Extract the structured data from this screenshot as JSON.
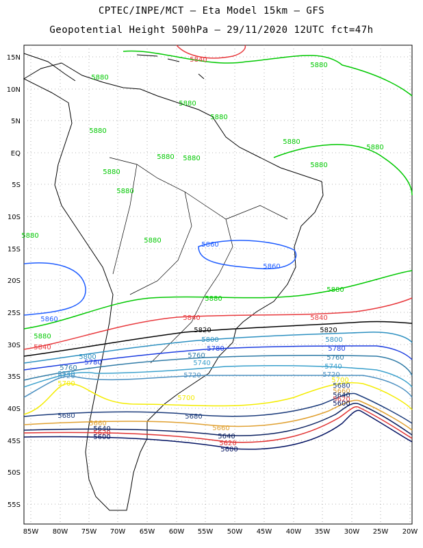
{
  "title_line1": "CPTEC/INPE/MCT –   Eta Model 15km – GFS",
  "title_line2": "Geopotential Height 500hPa – 29/11/2020 12UTC fct=47h",
  "lat_ticks": [
    "15N",
    "10N",
    "5N",
    "EQ",
    "5S",
    "10S",
    "15S",
    "20S",
    "25S",
    "30S",
    "35S",
    "40S",
    "45S",
    "50S",
    "55S"
  ],
  "lon_ticks": [
    "85W",
    "80W",
    "75W",
    "70W",
    "65W",
    "60W",
    "55W",
    "50W",
    "45W",
    "40W",
    "35W",
    "30W",
    "25W",
    "20W"
  ],
  "contours": [
    {
      "value": 5880,
      "label": "5880",
      "color": "#00c800"
    },
    {
      "value": 5860,
      "label": "5860",
      "color": "#1e5cff"
    },
    {
      "value": 5840,
      "label": "5840",
      "color": "#e8383c"
    },
    {
      "value": 5820,
      "label": "5820",
      "color": "#000000"
    },
    {
      "value": 5800,
      "label": "5800",
      "color": "#2b8fc0"
    },
    {
      "value": 5780,
      "label": "5780",
      "color": "#1b3ce0"
    },
    {
      "value": 5760,
      "label": "5760",
      "color": "#2e7aa6"
    },
    {
      "value": 5740,
      "label": "5740",
      "color": "#3aa0cc"
    },
    {
      "value": 5720,
      "label": "5720",
      "color": "#4a8fc0"
    },
    {
      "value": 5700,
      "label": "5700",
      "color": "#f4ec00"
    },
    {
      "value": 5680,
      "label": "5680",
      "color": "#1a3a7a"
    },
    {
      "value": 5660,
      "label": "5660",
      "color": "#e0a030"
    },
    {
      "value": 5640,
      "label": "5640",
      "color": "#0a2060"
    },
    {
      "value": 5620,
      "label": "5620",
      "color": "#e03030"
    },
    {
      "value": 5600,
      "label": "5600",
      "color": "#001060"
    }
  ]
}
